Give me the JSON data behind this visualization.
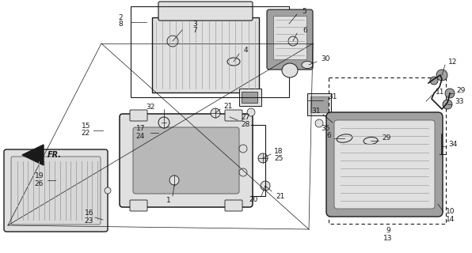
{
  "bg_color": "#ffffff",
  "fg_color": "#1a1a1a",
  "fig_width": 5.96,
  "fig_height": 3.2,
  "dpi": 100,
  "gray_fill": "#c8c8c8",
  "light_gray": "#e0e0e0",
  "med_gray": "#a0a0a0",
  "dark_gray": "#606060",
  "lw_main": 0.8,
  "lw_thin": 0.5,
  "lw_leader": 0.5,
  "fs_label": 6.5
}
